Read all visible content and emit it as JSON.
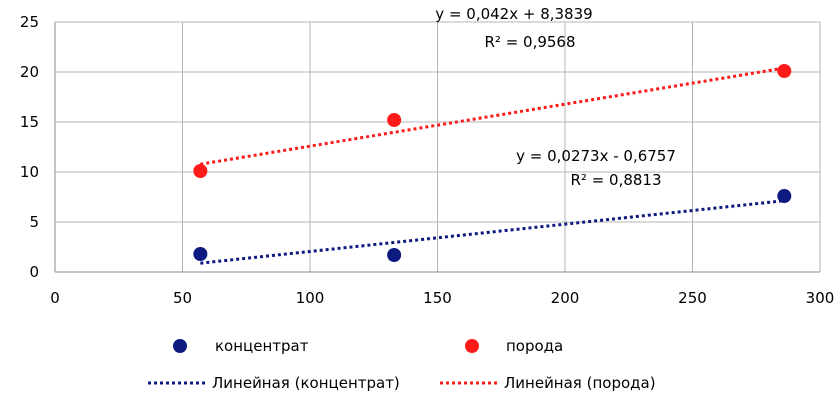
{
  "chart_data": {
    "type": "scatter",
    "xlim": [
      0,
      300
    ],
    "ylim": [
      0,
      25
    ],
    "x_ticks": [
      "0",
      "50",
      "100",
      "150",
      "200",
      "250",
      "300"
    ],
    "y_ticks": [
      "0",
      "5",
      "10",
      "15",
      "20",
      "25"
    ],
    "grid": true,
    "legend_position": "bottom",
    "series": [
      {
        "name": "концентрат",
        "color": "#0d1a80",
        "points": [
          [
            57,
            1.8
          ],
          [
            133,
            1.7
          ],
          [
            286,
            7.6
          ]
        ],
        "trendline": {
          "name": "Линейная (концентрат)",
          "slope": 0.0273,
          "intercept": -0.6757,
          "x_range": [
            57,
            286
          ],
          "equation": "y = 0,0273x - 0,6757",
          "r2": "R² = 0,8813"
        }
      },
      {
        "name": "порода",
        "color": "#ff1a1a",
        "points": [
          [
            57,
            10.1
          ],
          [
            133,
            15.2
          ],
          [
            286,
            20.1
          ]
        ],
        "trendline": {
          "name": "Линейная (порода)",
          "slope": 0.042,
          "intercept": 8.3839,
          "x_range": [
            57,
            286
          ],
          "equation": "y = 0,042x + 8,3839",
          "r2": "R² = 0,9568"
        }
      }
    ]
  }
}
